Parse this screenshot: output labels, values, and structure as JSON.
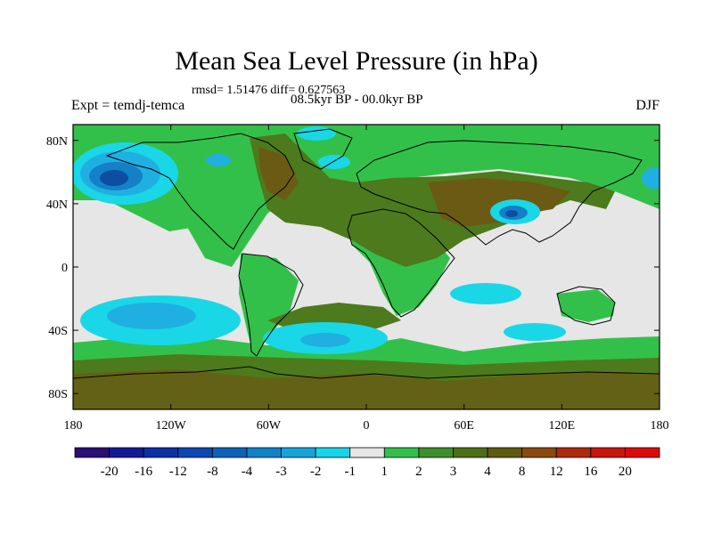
{
  "header": {
    "title": "Mean Sea Level Pressure (in hPa)",
    "stats": "rmsd= 1.51476 diff= 0.627563",
    "experiment": "Expt = temdj-temca",
    "period": "08.5kyr BP - 00.0kyr BP",
    "season": "DJF"
  },
  "colors": {
    "ocean_neutral": "#e6e6e6",
    "lightgreen": "#33c04a",
    "midgreen": "#2f9a33",
    "olive": "#4d7a1c",
    "brown": "#6b5a13",
    "cyan": "#19d7e6",
    "lightblue": "#1fb0e1",
    "blue": "#1480c8",
    "darkblue": "#0c4fa0"
  },
  "chart_data": {
    "type": "heatmap",
    "title": "Mean Sea Level Pressure (in hPa)",
    "xlabel": "",
    "ylabel": "",
    "x_ticks": [
      "180",
      "120W",
      "60W",
      "0",
      "60E",
      "120E",
      "180"
    ],
    "x_tick_values": [
      -180,
      -120,
      -60,
      0,
      60,
      120,
      180
    ],
    "y_ticks": [
      "80N",
      "40N",
      "0",
      "40S",
      "80S"
    ],
    "y_tick_values": [
      80,
      40,
      0,
      -40,
      -80
    ],
    "xlim": [
      -180,
      180
    ],
    "ylim": [
      -90,
      90
    ],
    "colorbar": {
      "labels": [
        "-20",
        "-16",
        "-12",
        "-8",
        "-4",
        "-3",
        "-2",
        "-1",
        "1",
        "2",
        "3",
        "4",
        "8",
        "12",
        "16",
        "20"
      ],
      "colors": [
        "#2a0f74",
        "#141a93",
        "#0d2fa5",
        "#0c46b0",
        "#0a63b9",
        "#0f83c8",
        "#17a4dc",
        "#18d4e8",
        "#e6e6e6",
        "#33c04a",
        "#3e8f2c",
        "#4d6e18",
        "#5f5a12",
        "#8a4a0e",
        "#ad2a0c",
        "#c8160c",
        "#dd0a0a"
      ]
    }
  }
}
